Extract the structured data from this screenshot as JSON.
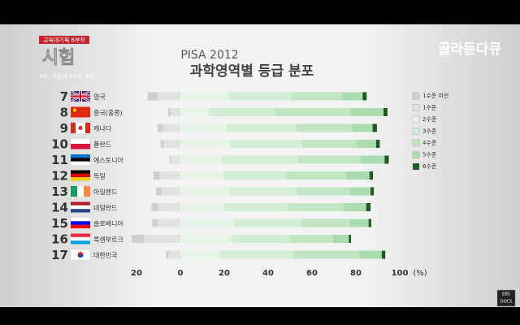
{
  "program": {
    "series_badge": "교육대기획 6부작",
    "title": "시험",
    "episode": "4부. 서울대 A+의 조건"
  },
  "channel_logo": "골라듄다큐",
  "corner_badge": [
    "EBS",
    "DOCS"
  ],
  "chart_data": {
    "type": "diverging-stacked-bar",
    "title": "PISA 2012",
    "subtitle": "과학영역별 등급 분포",
    "ranks": [
      7,
      8,
      9,
      10,
      11,
      12,
      13,
      14,
      15,
      16,
      17
    ],
    "categories": [
      "영국",
      "중국(홍콩)",
      "캐나다",
      "폴란드",
      "에스토니아",
      "독일",
      "아일랜드",
      "네덜란드",
      "슬로베니아",
      "룩셈부르크",
      "대한민국"
    ],
    "series": [
      {
        "name": "1수준 미만",
        "color": "#cfcfcf",
        "direction": "left",
        "values": [
          4.5,
          1.2,
          2.4,
          1.3,
          0.5,
          2.9,
          2.6,
          3.1,
          2.4,
          5.6,
          1.2
        ]
      },
      {
        "name": "1수준",
        "color": "#e2e2e2",
        "direction": "left",
        "values": [
          10.5,
          4.4,
          8.0,
          7.7,
          4.5,
          9.3,
          8.5,
          10.1,
          10.4,
          16.6,
          5.4
        ]
      },
      {
        "name": "2수준",
        "color": "#e7f4e7",
        "direction": "right",
        "values": [
          21.9,
          13.0,
          21.0,
          22.5,
          19.0,
          19.6,
          22.0,
          20.1,
          24.5,
          23.4,
          18.0
        ]
      },
      {
        "name": "3수준",
        "color": "#d4edd5",
        "direction": "right",
        "values": [
          28.8,
          29.8,
          32.0,
          33.1,
          34.5,
          28.9,
          31.1,
          29.1,
          30.4,
          26.5,
          33.6
        ]
      },
      {
        "name": "4수준",
        "color": "#c2e5c4",
        "direction": "right",
        "values": [
          23.0,
          34.9,
          25.3,
          24.5,
          28.7,
          27.1,
          24.3,
          25.3,
          22.2,
          19.8,
          30.1
        ]
      },
      {
        "name": "5수준",
        "color": "#abdcb0",
        "direction": "right",
        "values": [
          9.4,
          14.9,
          9.3,
          9.1,
          10.9,
          10.6,
          9.3,
          10.2,
          8.7,
          7.1,
          10.1
        ]
      },
      {
        "name": "6수준",
        "color": "#1e5a22",
        "direction": "right",
        "values": [
          1.8,
          1.8,
          2.0,
          1.7,
          1.9,
          1.6,
          1.5,
          2.0,
          1.2,
          1.0,
          1.6
        ]
      }
    ],
    "xlim": [
      -22,
      100
    ],
    "xticks": [
      {
        "value": -20,
        "label": "20"
      },
      0,
      20,
      40,
      60,
      80,
      100
    ],
    "xlabel": "(%)"
  }
}
